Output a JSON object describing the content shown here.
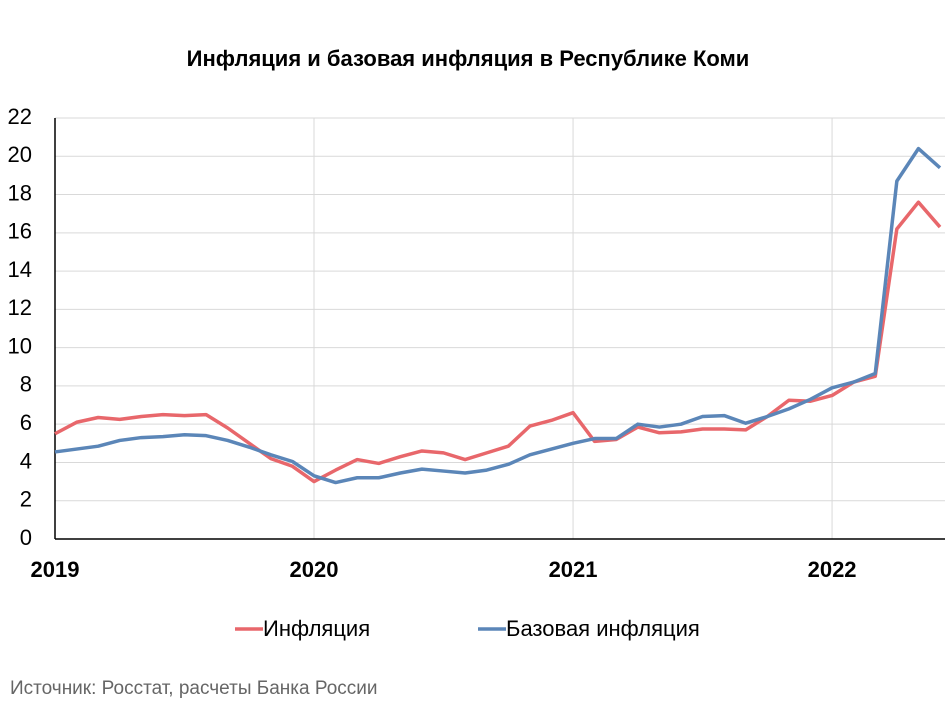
{
  "chart_data": {
    "type": "line",
    "title": "Инфляция и базовая инфляция в Республике Коми",
    "source": "Источник: Росстат, расчеты Банка России",
    "categories": [
      "2019",
      null,
      null,
      null,
      null,
      null,
      null,
      null,
      null,
      null,
      null,
      null,
      "2020",
      null,
      null,
      null,
      null,
      null,
      null,
      null,
      null,
      null,
      null,
      null,
      "2021",
      null,
      null,
      null,
      null,
      null,
      null,
      null,
      null,
      null,
      null,
      null,
      "2022",
      null,
      null,
      null,
      null,
      null
    ],
    "series": [
      {
        "name": "Инфляция",
        "color": "#e8676b",
        "values": [
          5.5,
          6.1,
          6.35,
          6.25,
          6.4,
          6.5,
          6.45,
          6.5,
          5.8,
          5.0,
          4.2,
          3.8,
          3.0,
          3.6,
          4.15,
          3.95,
          4.3,
          4.6,
          4.5,
          4.15,
          4.5,
          4.85,
          5.9,
          6.2,
          6.6,
          5.1,
          5.2,
          5.85,
          5.55,
          5.6,
          5.75,
          5.75,
          5.7,
          6.4,
          7.25,
          7.2,
          7.5,
          8.2,
          8.5,
          16.2,
          17.6,
          16.3
        ]
      },
      {
        "name": "Базовая инфляция",
        "color": "#5b86b8",
        "values": [
          4.55,
          4.7,
          4.85,
          5.15,
          5.3,
          5.35,
          5.45,
          5.4,
          5.15,
          4.8,
          4.4,
          4.05,
          3.3,
          2.95,
          3.2,
          3.2,
          3.45,
          3.65,
          3.55,
          3.45,
          3.6,
          3.9,
          4.4,
          4.7,
          5.0,
          5.25,
          5.25,
          6.0,
          5.85,
          6.0,
          6.4,
          6.45,
          6.05,
          6.4,
          6.8,
          7.3,
          7.9,
          8.2,
          8.65,
          18.7,
          20.4,
          19.4
        ]
      }
    ],
    "ylim": [
      0,
      22
    ],
    "yticks": [
      0,
      2,
      4,
      6,
      8,
      10,
      12,
      14,
      16,
      18,
      20,
      22
    ],
    "grid": true,
    "legend": "bottom"
  }
}
